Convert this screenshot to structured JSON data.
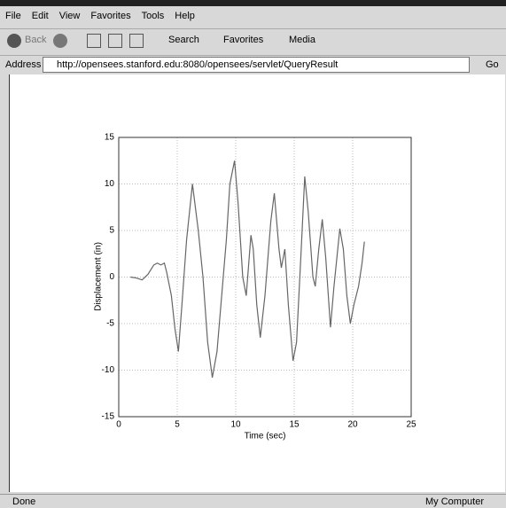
{
  "menu": [
    "File",
    "Edit",
    "View",
    "Favorites",
    "Tools",
    "Help"
  ],
  "toolbar": {
    "back": "Back",
    "search": "Search",
    "favorites": "Favorites",
    "media": "Media"
  },
  "address": {
    "label": "Address",
    "url": "http://opensees.stanford.edu:8080/opensees/servlet/QueryResult",
    "go": "Go"
  },
  "status": {
    "left": "Done",
    "zone": "My Computer"
  },
  "chart_data": {
    "type": "line",
    "xlabel": "Time (sec)",
    "ylabel": "Displacement (in)",
    "x": [
      1,
      1.5,
      2,
      2.5,
      3,
      3.3,
      3.6,
      3.9,
      4.1,
      4.5,
      4.8,
      5.1,
      5.4,
      5.8,
      6.3,
      6.8,
      7.2,
      7.6,
      8,
      8.4,
      8.8,
      9.2,
      9.5,
      9.9,
      10.2,
      10.6,
      10.9,
      11.3,
      11.5,
      11.8,
      12.1,
      12.5,
      13,
      13.3,
      13.7,
      13.9,
      14.2,
      14.5,
      14.9,
      15.2,
      15.6,
      15.9,
      16.2,
      16.6,
      16.8,
      17.1,
      17.4,
      17.7,
      18.1,
      18.4,
      18.9,
      19.2,
      19.5,
      19.8,
      20.1,
      20.5,
      20.8,
      21
    ],
    "values": [
      0,
      -0.1,
      -0.3,
      0.3,
      1.3,
      1.5,
      1.3,
      1.5,
      0.5,
      -2,
      -5.5,
      -8,
      -3,
      4,
      10,
      5,
      0,
      -7,
      -10.8,
      -8,
      -2,
      4,
      10,
      12.5,
      8,
      0,
      -2,
      4.5,
      3,
      -3,
      -6.5,
      -2,
      6,
      9,
      3,
      1,
      3,
      -3,
      -9,
      -7,
      3,
      10.8,
      7,
      0,
      -1,
      3,
      6.2,
      2,
      -5.4,
      -1,
      5.2,
      3,
      -2,
      -5,
      -3,
      -1,
      1.5,
      3.8
    ],
    "color": "#666666",
    "xlim": [
      0,
      25
    ],
    "xticks": [
      0,
      5,
      10,
      15,
      20,
      25
    ],
    "ylim": [
      -15,
      15
    ],
    "yticks": [
      -15,
      -10,
      -5,
      0,
      5,
      10,
      15
    ],
    "grid": true
  }
}
